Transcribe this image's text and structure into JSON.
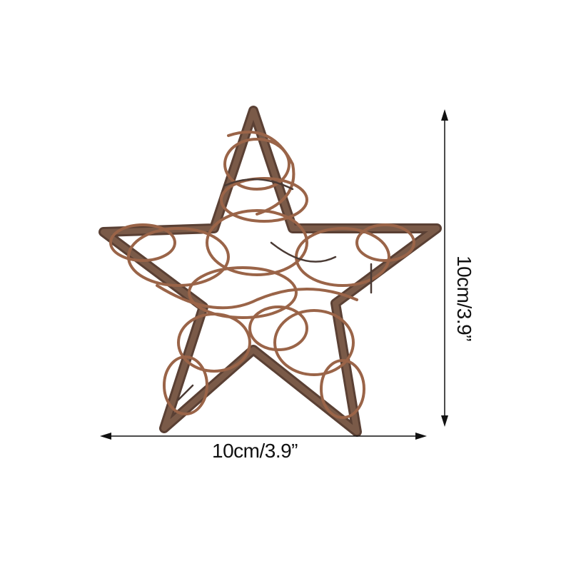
{
  "product": {
    "image_subject": "rattan-star",
    "colors": {
      "rattan": "#8a5a44",
      "dark_twig": "#5a4034",
      "arrow": "#111111"
    }
  },
  "dimensions": {
    "width_label": "10cm/3.9”",
    "height_label": "10cm/3.9”"
  }
}
